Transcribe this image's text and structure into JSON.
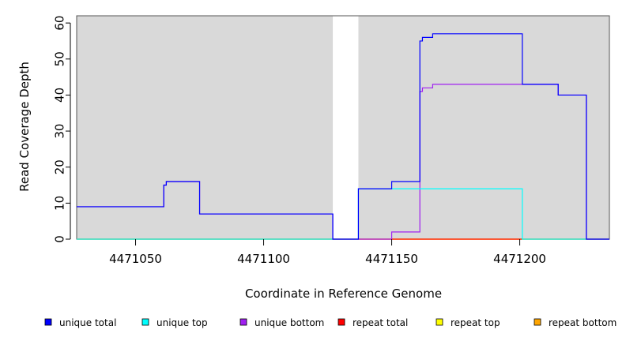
{
  "chart_data": {
    "type": "line",
    "step": true,
    "xlabel": "Coordinate in Reference Genome",
    "ylabel": "Read Coverage Depth",
    "xlim": [
      4471027,
      4471235
    ],
    "ylim": [
      0,
      62
    ],
    "xticks": [
      4471050,
      4471100,
      4471150,
      4471200
    ],
    "yticks": [
      0,
      10,
      20,
      30,
      40,
      50,
      60
    ],
    "shaded_regions": [
      [
        4471027,
        4471127
      ],
      [
        4471137,
        4471235
      ]
    ],
    "background_color": "#d9d9d9",
    "series": [
      {
        "name": "unique total",
        "color": "#0000ff",
        "x": [
          4471027,
          4471061,
          4471062,
          4471075,
          4471127,
          4471137,
          4471150,
          4471161,
          4471162,
          4471166,
          4471201,
          4471215,
          4471226,
          4471235
        ],
        "y": [
          9,
          15,
          16,
          7,
          0,
          14,
          16,
          55,
          56,
          57,
          43,
          40,
          0,
          0
        ]
      },
      {
        "name": "unique top",
        "color": "#00ffff",
        "x": [
          4471027,
          4471137,
          4471201,
          4471235
        ],
        "y": [
          0,
          14,
          0,
          0
        ]
      },
      {
        "name": "unique bottom",
        "color": "#a020f0",
        "x": [
          4471027,
          4471061,
          4471062,
          4471075,
          4471127,
          4471137,
          4471150,
          4471161,
          4471162,
          4471166,
          4471201,
          4471215,
          4471226,
          4471235
        ],
        "y": [
          9,
          15,
          16,
          7,
          0,
          0,
          2,
          41,
          42,
          43,
          43,
          40,
          0,
          0
        ]
      },
      {
        "name": "repeat total",
        "color": "#ff0000",
        "x": [
          4471027,
          4471235
        ],
        "y": [
          0,
          0
        ]
      },
      {
        "name": "repeat top",
        "color": "#ffff00",
        "x": [
          4471027,
          4471235
        ],
        "y": [
          0,
          0
        ]
      },
      {
        "name": "repeat bottom",
        "color": "#ffa500",
        "x": [
          4471027,
          4471235
        ],
        "y": [
          0,
          0
        ]
      }
    ],
    "legend_position": "bottom",
    "grid": false
  }
}
